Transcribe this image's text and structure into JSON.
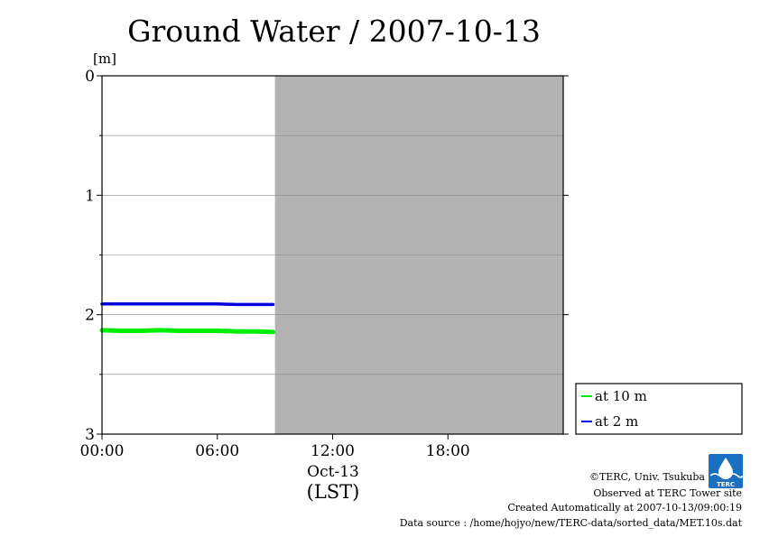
{
  "chart_data": {
    "type": "line",
    "title": "Ground Water / 2007-10-13",
    "ylabel": "[m]",
    "xlabel": "(LST)",
    "x_range_hours": [
      0,
      24
    ],
    "ylim": [
      3,
      0
    ],
    "y_axis_inverted": true,
    "y_ticks": [
      "0",
      "1",
      "2",
      "3"
    ],
    "y_minor_grid": [
      0.5,
      1.5,
      2.5
    ],
    "x_ticks": [
      {
        "hour": 0,
        "label": "00:00"
      },
      {
        "hour": 6,
        "label": "06:00"
      },
      {
        "hour": 12,
        "label": "12:00"
      },
      {
        "hour": 18,
        "label": "18:00"
      }
    ],
    "date_label": "Oct-13",
    "no_data_from_hour": 9.0,
    "no_data_color": "#b3b3b3",
    "legend_position": "right-bottom",
    "series": [
      {
        "name": "at 10 m",
        "color": "#00ee00",
        "points": [
          [
            0,
            2.13
          ],
          [
            1,
            2.135
          ],
          [
            2,
            2.135
          ],
          [
            3,
            2.13
          ],
          [
            4,
            2.135
          ],
          [
            5,
            2.135
          ],
          [
            6,
            2.135
          ],
          [
            7,
            2.14
          ],
          [
            8,
            2.14
          ],
          [
            8.9,
            2.145
          ]
        ]
      },
      {
        "name": "at 2 m",
        "color": "#0000dd",
        "points": [
          [
            0,
            1.91
          ],
          [
            1,
            1.91
          ],
          [
            2,
            1.91
          ],
          [
            3,
            1.91
          ],
          [
            4,
            1.91
          ],
          [
            5,
            1.91
          ],
          [
            6,
            1.91
          ],
          [
            7,
            1.915
          ],
          [
            8,
            1.915
          ],
          [
            8.9,
            1.915
          ]
        ]
      }
    ]
  },
  "footer": {
    "copyright": "©TERC, Univ. Tsukuba",
    "observed": "Observed at TERC Tower site",
    "created": "Created Automatically at 2007-10-13/09:00:19",
    "source": "Data source : /home/hojyo/new/TERC-data/sorted_data/MET.10s.dat"
  },
  "logo": {
    "text": "TERC",
    "color": "#1a6fc0"
  }
}
